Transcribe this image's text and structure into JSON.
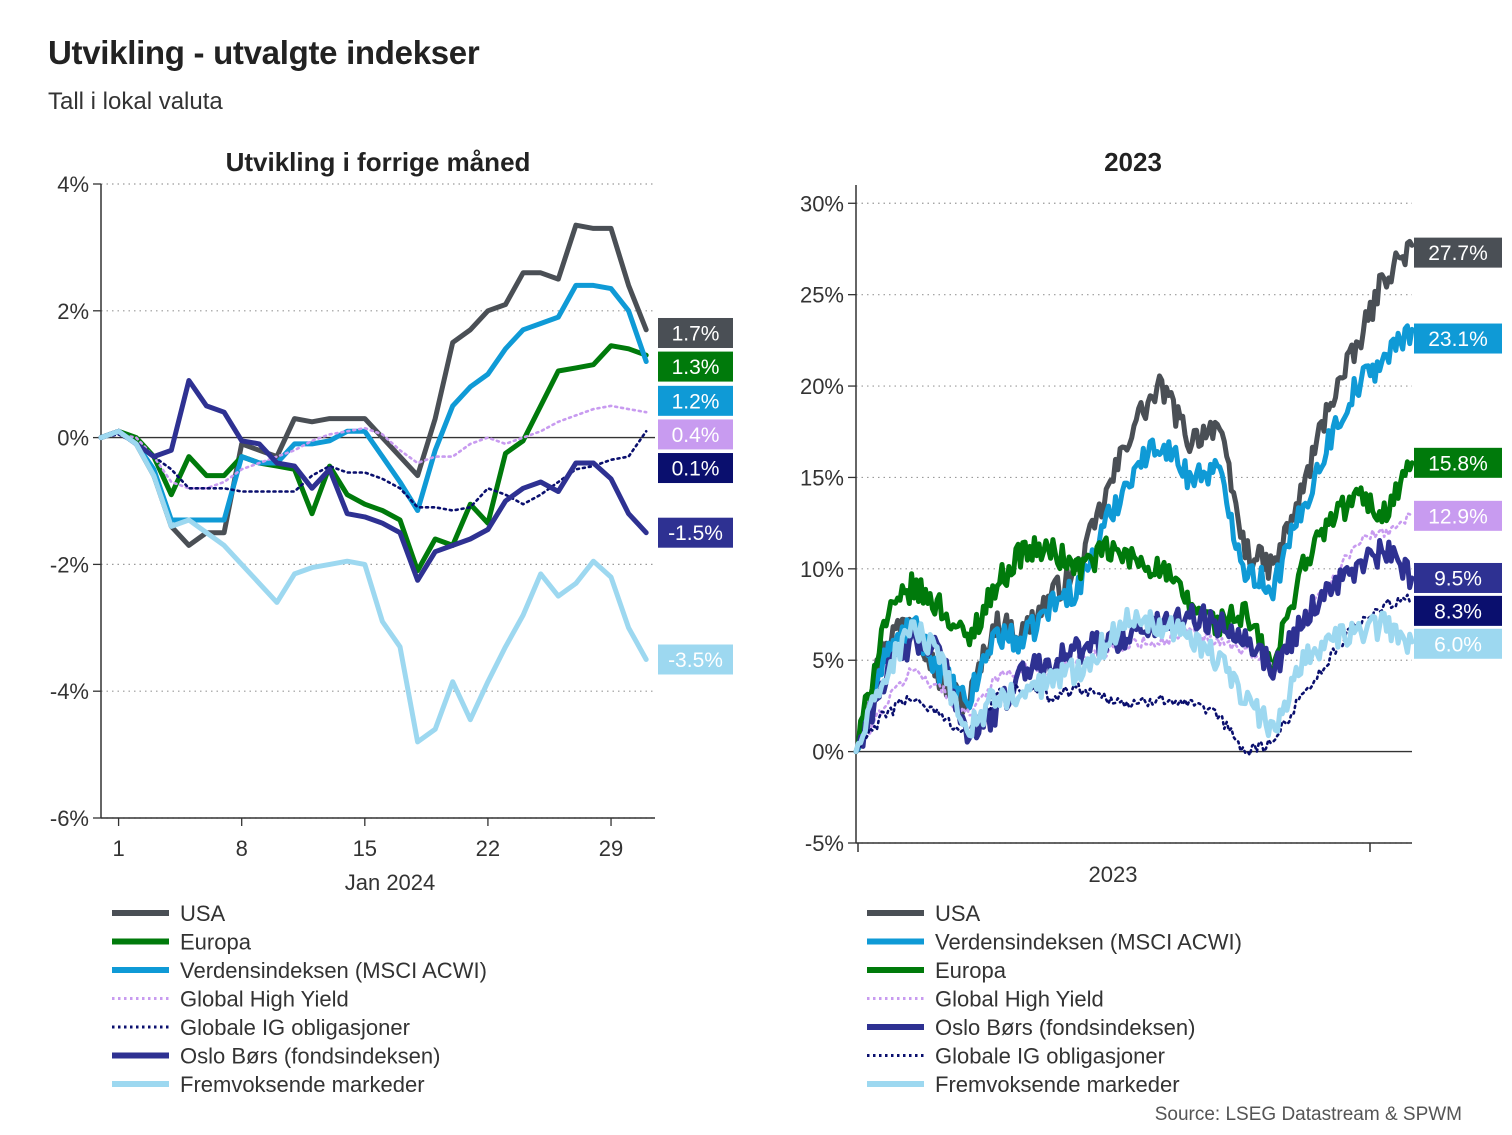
{
  "title": "Utvikling - utvalgte indekser",
  "subtitle": "Tall i lokal valuta",
  "source": "Source: LSEG Datastream & SPWM",
  "colors": {
    "usa": "#4a4f55",
    "europa": "#007a0b",
    "verden": "#0f9ad6",
    "hy": "#c89bf0",
    "ig": "#0a0f6e",
    "oslo": "#2e3192",
    "em": "#9dd8f0"
  },
  "chart_data": [
    {
      "type": "line",
      "title": "Utvikling i forrige måned",
      "xlabel": "Jan 2024",
      "ylabel": "",
      "xlim": [
        0,
        31.5
      ],
      "ylim": [
        -6,
        4
      ],
      "yticks": [
        4,
        2,
        0,
        -2,
        -4,
        -6
      ],
      "ytick_labels": [
        "4%",
        "2%",
        "0%",
        "-2%",
        "-4%",
        "-6%"
      ],
      "xticks": [
        1,
        8,
        15,
        22,
        29
      ],
      "xtick_labels": [
        "1",
        "8",
        "15",
        "22",
        "29"
      ],
      "grid": true,
      "legend_position": "bottom",
      "x": [
        0,
        1,
        2,
        3,
        4,
        5,
        6,
        7,
        8,
        9,
        10,
        11,
        12,
        13,
        14,
        15,
        16,
        17,
        18,
        19,
        20,
        21,
        22,
        23,
        24,
        25,
        26,
        27,
        28,
        29,
        30,
        31
      ],
      "series": [
        {
          "key": "usa",
          "name": "USA",
          "style": "solid",
          "end_label": "1.7%",
          "label_y": 1.65,
          "values": [
            0,
            0.1,
            -0.1,
            -0.6,
            -1.4,
            -1.7,
            -1.5,
            -1.5,
            -0.1,
            -0.2,
            -0.3,
            0.3,
            0.25,
            0.3,
            0.3,
            0.3,
            0.0,
            -0.3,
            -0.6,
            0.3,
            1.5,
            1.7,
            2.0,
            2.1,
            2.6,
            2.6,
            2.5,
            3.35,
            3.3,
            3.3,
            2.4,
            1.7
          ]
        },
        {
          "key": "europa",
          "name": "Europa",
          "style": "solid",
          "end_label": "1.3%",
          "label_y": 1.12,
          "values": [
            0,
            0.1,
            0.0,
            -0.3,
            -0.9,
            -0.3,
            -0.6,
            -0.6,
            -0.3,
            -0.4,
            -0.45,
            -0.5,
            -1.2,
            -0.45,
            -0.9,
            -1.05,
            -1.15,
            -1.3,
            -2.1,
            -1.6,
            -1.7,
            -1.05,
            -1.35,
            -0.25,
            -0.05,
            0.5,
            1.05,
            1.1,
            1.15,
            1.45,
            1.4,
            1.3
          ]
        },
        {
          "key": "verden",
          "name": "Verdensindeksen (MSCI ACWI)",
          "style": "solid",
          "end_label": "1.2%",
          "label_y": 0.58,
          "values": [
            0,
            0.1,
            -0.1,
            -0.5,
            -1.3,
            -1.3,
            -1.3,
            -1.3,
            -0.3,
            -0.4,
            -0.4,
            -0.1,
            -0.1,
            -0.05,
            0.1,
            0.1,
            -0.3,
            -0.7,
            -1.15,
            -0.2,
            0.5,
            0.8,
            1.0,
            1.4,
            1.7,
            1.8,
            1.9,
            2.4,
            2.4,
            2.35,
            2.0,
            1.2
          ]
        },
        {
          "key": "hy",
          "name": "Global High Yield",
          "style": "dotted",
          "end_label": "0.4%",
          "label_y": 0.05,
          "values": [
            0,
            0.05,
            0.0,
            -0.3,
            -0.7,
            -0.8,
            -0.8,
            -0.7,
            -0.5,
            -0.4,
            -0.3,
            -0.2,
            -0.05,
            0.05,
            0.1,
            0.15,
            0.05,
            -0.2,
            -0.4,
            -0.3,
            -0.3,
            -0.1,
            0.0,
            -0.1,
            0.0,
            0.1,
            0.25,
            0.35,
            0.45,
            0.5,
            0.45,
            0.4
          ]
        },
        {
          "key": "ig",
          "name": "Globale IG obligasjoner",
          "style": "dotted",
          "end_label": "0.1%",
          "label_y": -0.48,
          "values": [
            0,
            0.05,
            -0.1,
            -0.3,
            -0.5,
            -0.8,
            -0.8,
            -0.8,
            -0.85,
            -0.85,
            -0.85,
            -0.85,
            -0.6,
            -0.45,
            -0.55,
            -0.55,
            -0.65,
            -0.8,
            -1.1,
            -1.1,
            -1.15,
            -1.1,
            -0.8,
            -0.9,
            -1.05,
            -0.9,
            -0.7,
            -0.5,
            -0.45,
            -0.35,
            -0.3,
            0.1
          ]
        },
        {
          "key": "oslo",
          "name": "Oslo Børs (fondsindeksen)",
          "style": "solid",
          "end_label": "-1.5%",
          "label_y": -1.5,
          "values": [
            0,
            0.1,
            -0.1,
            -0.3,
            -0.2,
            0.9,
            0.5,
            0.4,
            -0.05,
            -0.1,
            -0.4,
            -0.45,
            -0.8,
            -0.5,
            -1.2,
            -1.25,
            -1.35,
            -1.5,
            -2.25,
            -1.8,
            -1.7,
            -1.6,
            -1.45,
            -1.0,
            -0.8,
            -0.7,
            -0.85,
            -0.4,
            -0.4,
            -0.65,
            -1.2,
            -1.5
          ]
        },
        {
          "key": "em",
          "name": "Fremvoksende markeder",
          "style": "solid",
          "end_label": "-3.5%",
          "label_y": -3.5,
          "values": [
            0,
            0.1,
            -0.1,
            -0.6,
            -1.4,
            -1.3,
            -1.5,
            -1.7,
            -2.0,
            -2.3,
            -2.6,
            -2.15,
            -2.05,
            -2.0,
            -1.95,
            -2.0,
            -2.9,
            -3.3,
            -4.8,
            -4.6,
            -3.85,
            -4.45,
            -3.85,
            -3.3,
            -2.8,
            -2.15,
            -2.5,
            -2.3,
            -1.95,
            -2.2,
            -3.0,
            -3.5
          ]
        }
      ]
    },
    {
      "type": "line",
      "title": "2023",
      "xlabel": "2023",
      "ylabel": "",
      "xlim": [
        0,
        1
      ],
      "ylim": [
        -5,
        31
      ],
      "yticks": [
        30,
        25,
        20,
        15,
        10,
        5,
        0,
        -5
      ],
      "ytick_labels": [
        "30%",
        "25%",
        "20%",
        "15%",
        "10%",
        "5%",
        "0%",
        "-5%"
      ],
      "grid": true,
      "legend_position": "bottom",
      "x_points": [
        0,
        0.05,
        0.1,
        0.15,
        0.2,
        0.25,
        0.3,
        0.35,
        0.4,
        0.45,
        0.5,
        0.55,
        0.6,
        0.65,
        0.7,
        0.75,
        0.8,
        0.85,
        0.9,
        0.95,
        1.0
      ],
      "series": [
        {
          "key": "usa",
          "name": "USA",
          "style": "solid",
          "end_label": "27.7%",
          "label_y": 27.3,
          "values": [
            0,
            6.0,
            7.5,
            4.0,
            2.5,
            7.0,
            6.5,
            8.5,
            10.0,
            14.0,
            18.0,
            20.0,
            17.0,
            18.0,
            11.0,
            10.0,
            14.0,
            19.0,
            22.0,
            26.0,
            27.7
          ]
        },
        {
          "key": "verden",
          "name": "Verdensindeksen (MSCI ACWI)",
          "style": "solid",
          "end_label": "23.1%",
          "label_y": 22.6,
          "values": [
            0,
            5.0,
            7.0,
            4.5,
            2.5,
            6.5,
            6.0,
            8.0,
            9.0,
            12.5,
            15.5,
            17.0,
            15.0,
            15.5,
            10.0,
            9.0,
            13.0,
            17.0,
            20.0,
            21.5,
            23.1
          ]
        },
        {
          "key": "europa",
          "name": "Europa",
          "style": "solid",
          "end_label": "15.8%",
          "label_y": 15.8,
          "values": [
            0,
            7.0,
            9.0,
            8.0,
            6.0,
            9.0,
            11.0,
            11.0,
            10.0,
            11.0,
            10.5,
            10.0,
            8.0,
            7.0,
            7.5,
            4.5,
            10.0,
            12.5,
            14.0,
            13.0,
            15.8
          ]
        },
        {
          "key": "hy",
          "name": "Global High Yield",
          "style": "dotted",
          "end_label": "12.9%",
          "label_y": 12.9,
          "values": [
            0,
            2.5,
            4.5,
            3.5,
            2.0,
            4.0,
            4.5,
            4.5,
            5.0,
            5.5,
            6.0,
            6.0,
            6.5,
            6.0,
            5.5,
            4.5,
            7.0,
            9.0,
            11.5,
            12.0,
            12.9
          ]
        },
        {
          "key": "oslo",
          "name": "Oslo Børs (fondsindeksen)",
          "style": "solid",
          "end_label": "9.5%",
          "label_y": 9.5,
          "values": [
            0,
            4.0,
            6.0,
            5.5,
            1.0,
            2.0,
            4.5,
            5.0,
            5.5,
            6.0,
            6.5,
            7.0,
            7.5,
            7.0,
            6.5,
            4.5,
            7.0,
            9.0,
            10.0,
            11.0,
            9.5
          ]
        },
        {
          "key": "ig",
          "name": "Globale IG obligasjoner",
          "style": "dotted",
          "end_label": "8.3%",
          "label_y": 7.7,
          "values": [
            0,
            2.0,
            3.0,
            2.0,
            1.0,
            3.0,
            3.5,
            3.0,
            3.5,
            3.0,
            2.5,
            3.0,
            2.5,
            2.0,
            0.0,
            0.5,
            3.0,
            5.0,
            7.0,
            8.0,
            8.3
          ]
        },
        {
          "key": "em",
          "name": "Fremvoksende markeder",
          "style": "solid",
          "end_label": "6.0%",
          "label_y": 5.9,
          "values": [
            0,
            4.0,
            7.0,
            5.0,
            1.0,
            3.0,
            3.0,
            4.0,
            4.5,
            6.0,
            7.5,
            7.0,
            6.5,
            5.0,
            3.0,
            1.0,
            5.0,
            6.0,
            6.5,
            7.0,
            6.0
          ]
        }
      ]
    }
  ]
}
